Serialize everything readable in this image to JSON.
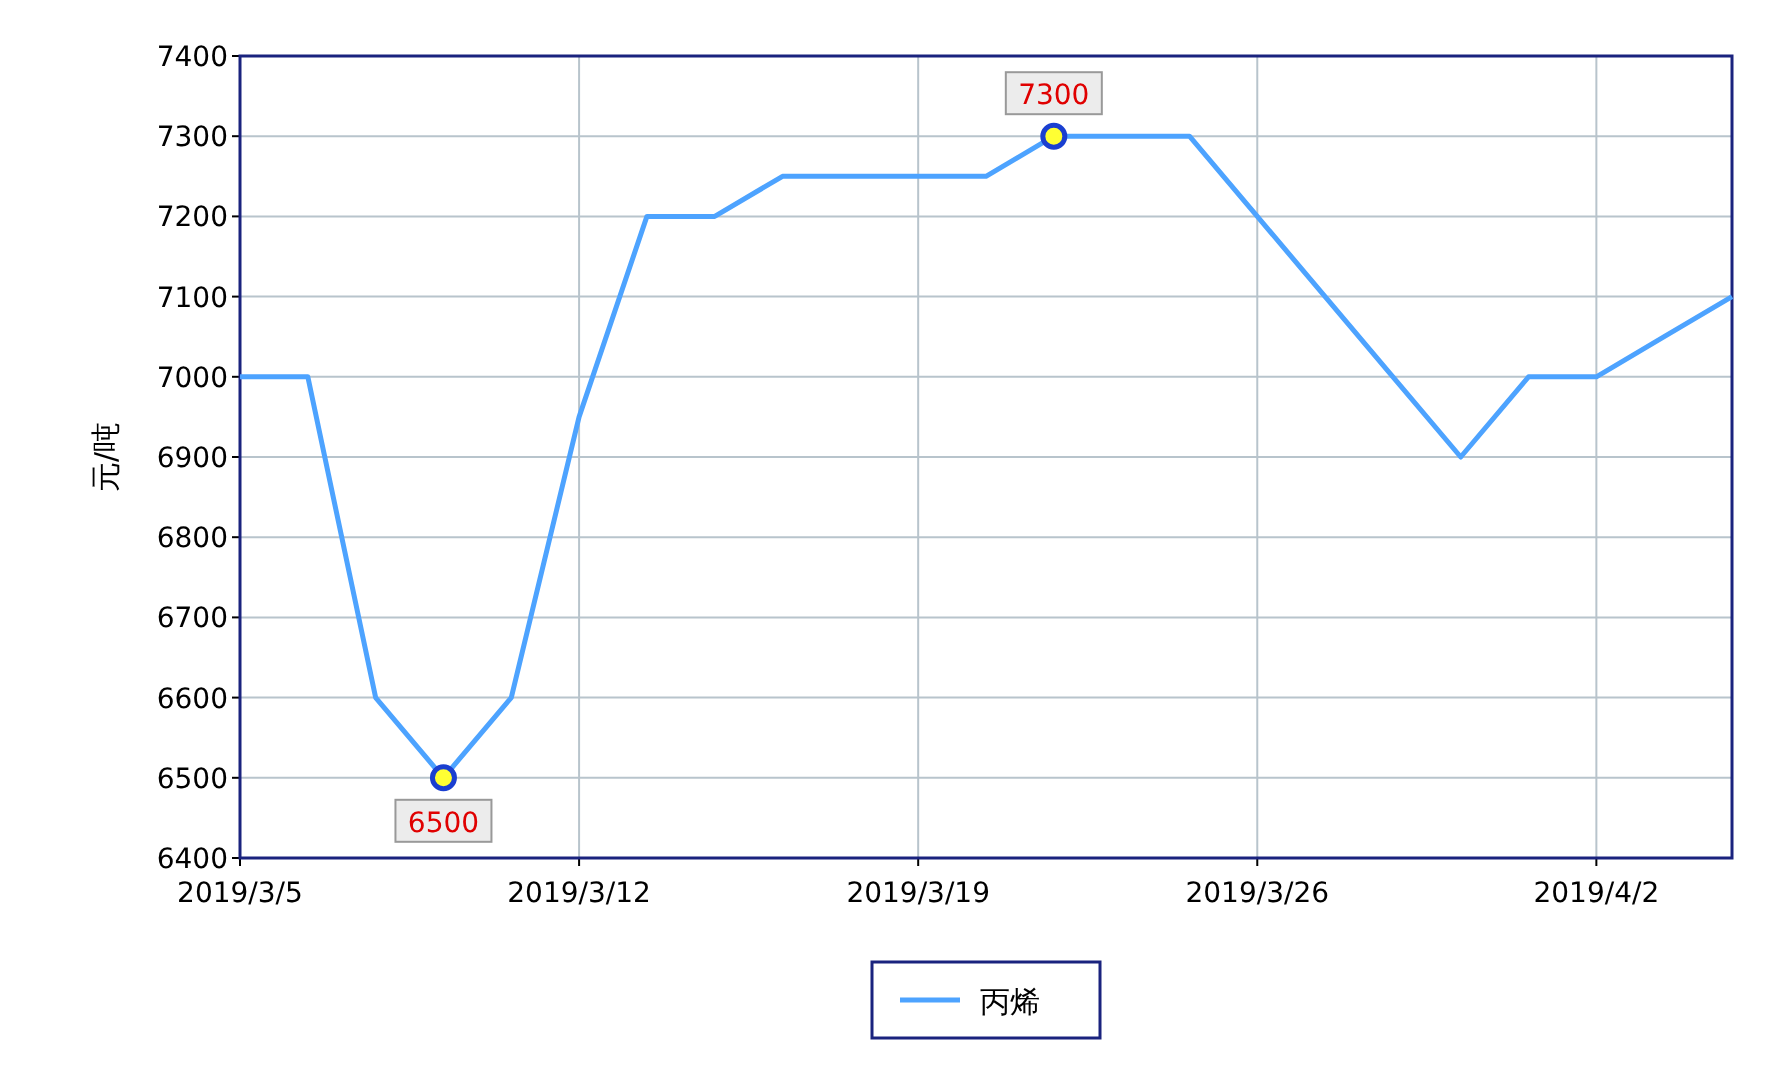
{
  "chart_data": {
    "type": "line",
    "ylabel": "元/吨",
    "categories": [
      "2019/3/5",
      null,
      null,
      null,
      null,
      "2019/3/12",
      null,
      null,
      null,
      null,
      "2019/3/19",
      null,
      null,
      null,
      null,
      "2019/3/26",
      null,
      null,
      null,
      null,
      "2019/4/2",
      null,
      null
    ],
    "series": [
      {
        "name": "丙烯",
        "color": "#4da3ff",
        "values": [
          7000,
          7000,
          6600,
          6500,
          6600,
          6950,
          7200,
          7200,
          7250,
          7250,
          7250,
          7250,
          7300,
          7300,
          7300,
          7200,
          7100,
          7000,
          6900,
          7000,
          7000,
          7050,
          7100
        ],
        "value_labels": [
          null,
          null,
          null,
          "6500",
          null,
          null,
          null,
          null,
          null,
          null,
          null,
          null,
          "7300",
          null,
          null,
          null,
          null,
          null,
          null,
          null,
          null,
          null,
          null
        ]
      }
    ],
    "ylim": [
      6400,
      7400
    ],
    "yticks": [
      6400,
      6500,
      6600,
      6700,
      6800,
      6900,
      7000,
      7100,
      7200,
      7300,
      7400
    ],
    "grid": true,
    "legend": "bottom",
    "marker": "none",
    "line_style": "solid"
  }
}
